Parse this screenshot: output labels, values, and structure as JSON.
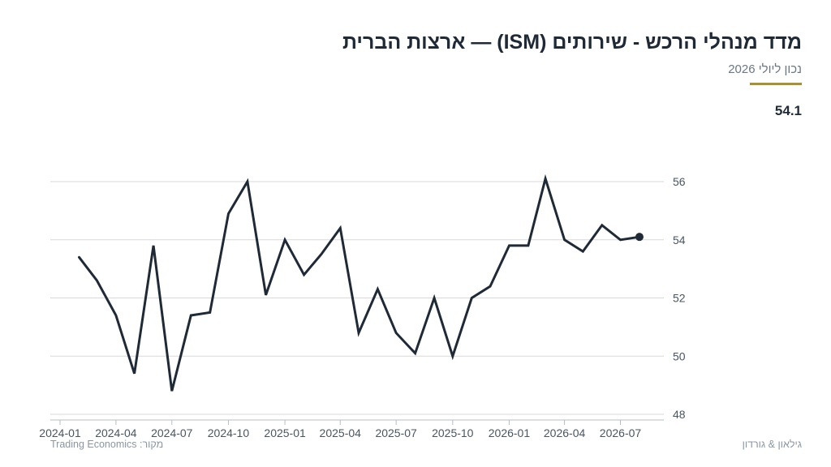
{
  "header": {
    "title": "מדד מנהלי הרכש - שירותים (ISM) — ארצות הברית",
    "subtitle": "נכון ליולי 2026",
    "latest_value": "54.1"
  },
  "footer": {
    "source": "מקור: Trading Economics",
    "brand": "גילאון & גורדון"
  },
  "colors": {
    "line": "#1f2a36",
    "accent": "#a8912f",
    "grid": "#d9d9d9"
  },
  "chart_data": {
    "type": "line",
    "title": "מדד מנהלי הרכש - שירותים (ISM) — ארצות הברית",
    "subtitle": "נכון ליולי 2026",
    "xlabel": "",
    "ylabel": "",
    "ylim": [
      48,
      56
    ],
    "y_ticks": [
      48,
      50,
      52,
      54,
      56
    ],
    "y_axis_side": "right",
    "grid": true,
    "x_tick_labels": [
      "2024-01",
      "2024-04",
      "2024-07",
      "2024-10",
      "2025-01",
      "2025-04",
      "2025-07",
      "2025-10",
      "2026-01",
      "2026-04",
      "2026-07"
    ],
    "series": [
      {
        "x": [
          "2024-02",
          "2024-03",
          "2024-04",
          "2024-05",
          "2024-06",
          "2024-07",
          "2024-08",
          "2024-09",
          "2024-10",
          "2024-11",
          "2024-12",
          "2025-01",
          "2025-02",
          "2025-03",
          "2025-04",
          "2025-05",
          "2025-06",
          "2025-07",
          "2025-08",
          "2025-09",
          "2025-10",
          "2025-11",
          "2025-12",
          "2026-01",
          "2026-02",
          "2026-03",
          "2026-04",
          "2026-05",
          "2026-06",
          "2026-07",
          "2026-08"
        ],
        "values": [
          53.4,
          52.6,
          51.4,
          49.4,
          53.8,
          48.8,
          51.4,
          51.5,
          54.9,
          56.0,
          52.1,
          54.0,
          52.8,
          53.5,
          54.4,
          50.8,
          52.3,
          50.8,
          50.1,
          52.0,
          50.0,
          52.0,
          52.4,
          53.8,
          53.8,
          56.1,
          54.0,
          53.6,
          54.5,
          54.0,
          54.1
        ]
      }
    ]
  }
}
